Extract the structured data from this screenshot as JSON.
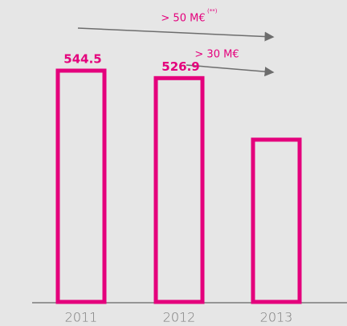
{
  "chart_data": {
    "type": "bar",
    "categories": [
      "2011",
      "2012",
      "2013"
    ],
    "values": [
      544.5,
      526.9,
      382
    ],
    "show_value_labels": [
      true,
      true,
      false
    ],
    "color": "#e4007c",
    "annotations": [
      {
        "text": "> 50 M€",
        "note": "(**)"
      },
      {
        "text": "> 30 M€"
      }
    ]
  }
}
